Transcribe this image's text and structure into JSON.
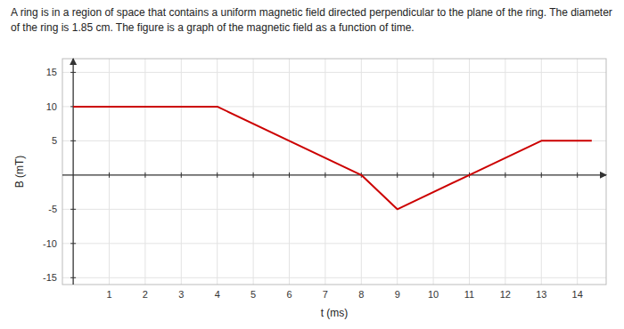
{
  "chart_data": {
    "type": "line",
    "title": "A ring is in a region of space that contains a uniform magnetic field directed perpendicular to the plane of the ring. The diameter",
    "subtitle": "of the ring is 1.85 cm. The figure is a graph of the magnetic field as a function of time.",
    "x_label": "t (ms)",
    "y_label": "B (mT)",
    "x": [
      0,
      4,
      8,
      9,
      11,
      13,
      14.4
    ],
    "values": [
      10,
      10,
      0,
      -5,
      0,
      5,
      5
    ],
    "color": "#cc0000",
    "xlim": [
      -0.3,
      14.8
    ],
    "ylim": [
      -16,
      17
    ],
    "xticks": [
      1,
      2,
      3,
      4,
      5,
      6,
      7,
      8,
      9,
      10,
      11,
      12,
      13,
      14
    ],
    "yticks": [
      -15,
      -10,
      -5,
      5,
      10,
      15
    ],
    "grid": true
  }
}
